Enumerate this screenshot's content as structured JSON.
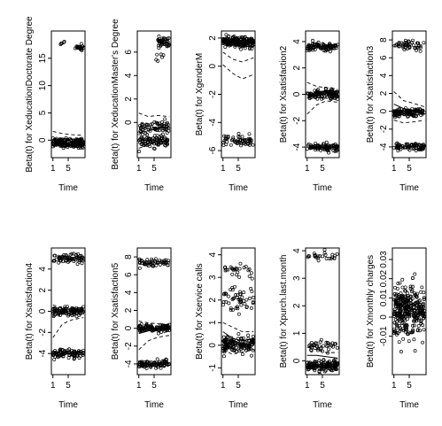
{
  "chart_data": [
    {
      "type": "scatter",
      "ylabel": "Beta(t) for XeducationDoctorate Degree",
      "xlabel": "Time",
      "xticks": [
        "1",
        "5"
      ],
      "xticks_at": [
        1,
        5
      ],
      "xlim": [
        0.6,
        9.4
      ],
      "ylim": [
        -3.2,
        20
      ],
      "yticks": [
        0,
        5,
        10,
        15
      ],
      "bands": [
        {
          "y": -0.5,
          "s": 0.8,
          "n": 170
        },
        {
          "y": 17,
          "s": 0.6,
          "n": 22,
          "x0": 6.8,
          "x1": 9
        },
        {
          "y": 18,
          "s": 0.6,
          "n": 5,
          "x0": 3,
          "x1": 4
        }
      ],
      "lines": [
        [
          0.2,
          0.2,
          0.2,
          0.2
        ],
        [
          -1.2,
          -0.8,
          -0.6,
          -0.5
        ],
        [
          1.6,
          1.2,
          1.0,
          0.9
        ]
      ]
    },
    {
      "type": "scatter",
      "ylabel": "Beta(t) for XeducationMaster's Degree",
      "xlabel": "Time",
      "xticks": [
        "1",
        "5"
      ],
      "xticks_at": [
        1,
        5
      ],
      "xlim": [
        0.6,
        9.4
      ],
      "ylim": [
        -3,
        7.8
      ],
      "yticks": [
        0,
        2,
        4,
        6
      ],
      "bands": [
        {
          "y": -1.6,
          "s": 0.5,
          "n": 90
        },
        {
          "y": -0.4,
          "s": 0.5,
          "n": 60
        },
        {
          "y": 6.8,
          "s": 0.5,
          "n": 40,
          "x0": 6,
          "x1": 9
        },
        {
          "y": 5.6,
          "s": 0.3,
          "n": 6,
          "x0": 5,
          "x1": 8
        }
      ],
      "lines": [
        [
          -0.9,
          -0.7,
          -0.5,
          -0.4
        ],
        [
          -2.2,
          -1.9,
          -1.7,
          -1.5
        ],
        [
          0.8,
          0.5,
          0.6,
          0.5
        ]
      ]
    },
    {
      "type": "scatter",
      "ylabel": "Beta(t) for XgenderM",
      "xlabel": "Time",
      "xticks": [
        "1",
        "5"
      ],
      "xticks_at": [
        1,
        5
      ],
      "xlim": [
        0.6,
        9.4
      ],
      "ylim": [
        -6.5,
        2.5
      ],
      "yticks": [
        -6,
        -4,
        -2,
        0,
        2
      ],
      "bands": [
        {
          "y": 1.7,
          "s": 0.35,
          "n": 200
        },
        {
          "y": -5.3,
          "s": 0.4,
          "n": 60
        }
      ],
      "lines": [
        [
          1.6,
          1.5,
          1.4,
          1.4
        ],
        [
          1.0,
          0.5,
          0.3,
          0.6
        ],
        [
          2.0,
          1.9,
          1.8,
          1.7
        ],
        [
          0.1,
          -0.5,
          -0.9,
          -0.6
        ]
      ]
    },
    {
      "type": "scatter",
      "ylabel": "Beta(t) for Xsatisfaction2",
      "xlabel": "Time",
      "xticks": [
        "1",
        "5"
      ],
      "xticks_at": [
        1,
        5
      ],
      "xlim": [
        0.6,
        9.4
      ],
      "ylim": [
        -4.8,
        4.8
      ],
      "yticks": [
        -4,
        -2,
        0,
        2,
        4
      ],
      "bands": [
        {
          "y": 3.6,
          "s": 0.3,
          "n": 90
        },
        {
          "y": 0,
          "s": 0.35,
          "n": 110
        },
        {
          "y": -4,
          "s": 0.3,
          "n": 90
        }
      ],
      "lines": [
        [
          -0.3,
          0.1,
          0.3,
          0.2
        ],
        [
          -1.5,
          -0.8,
          -0.5,
          -0.6
        ],
        [
          0.9,
          0.6,
          0.5,
          0.4
        ]
      ]
    },
    {
      "type": "scatter",
      "ylabel": "Beta(t) for Xsatisfaction3",
      "xlabel": "Time",
      "xticks": [
        "1",
        "5"
      ],
      "xticks_at": [
        1,
        5
      ],
      "xlim": [
        0.6,
        9.4
      ],
      "ylim": [
        -5.2,
        9
      ],
      "yticks": [
        -4,
        -2,
        0,
        2,
        4,
        6,
        8
      ],
      "bands": [
        {
          "y": 7.4,
          "s": 0.5,
          "n": 45
        },
        {
          "y": -0.2,
          "s": 0.5,
          "n": 110
        },
        {
          "y": -4,
          "s": 0.4,
          "n": 80
        }
      ],
      "lines": [
        [
          0.8,
          0.3,
          0,
          -0.3
        ],
        [
          -1,
          -1.3,
          -1.2,
          -1
        ],
        [
          2.2,
          1.2,
          0.9,
          0.5
        ]
      ]
    },
    {
      "type": "scatter",
      "ylabel": "Beta(t) for Xsatisfaction4",
      "xlabel": "Time",
      "xticks": [
        "1",
        "5"
      ],
      "xticks_at": [
        1,
        5
      ],
      "xlim": [
        0.6,
        9.4
      ],
      "ylim": [
        -6,
        6
      ],
      "yticks": [
        -4,
        -2,
        0,
        2,
        4
      ],
      "bands": [
        {
          "y": 5,
          "s": 0.4,
          "n": 70
        },
        {
          "y": 0,
          "s": 0.4,
          "n": 110
        },
        {
          "y": -4,
          "s": 0.4,
          "n": 90
        }
      ],
      "lines": [
        [
          -0.5,
          -0.1,
          0,
          0
        ],
        [
          -2.5,
          -1.2,
          -0.8,
          -0.6
        ],
        [
          0.6,
          0.3,
          0.4,
          0.3
        ]
      ]
    },
    {
      "type": "scatter",
      "ylabel": "Beta(t) for Xsatisfaction5",
      "xlabel": "Time",
      "xticks": [
        "1",
        "5"
      ],
      "xticks_at": [
        1,
        5
      ],
      "xlim": [
        0.6,
        9.4
      ],
      "ylim": [
        -5.2,
        9
      ],
      "yticks": [
        -4,
        -2,
        0,
        2,
        4,
        6,
        8
      ],
      "bands": [
        {
          "y": 7.4,
          "s": 0.4,
          "n": 55
        },
        {
          "y": 0,
          "s": 0.4,
          "n": 110
        },
        {
          "y": -4,
          "s": 0.4,
          "n": 90
        }
      ],
      "lines": [
        [
          -0.6,
          -0.3,
          -0.1,
          0
        ],
        [
          -2.4,
          -1.4,
          -1,
          -0.8
        ],
        [
          0.8,
          0.6,
          0.5,
          0.4
        ]
      ]
    },
    {
      "type": "scatter",
      "ylabel": "Beta(t) for Xservice calls",
      "xlabel": "Time",
      "xticks": [
        "1",
        "5"
      ],
      "xticks_at": [
        1,
        5
      ],
      "xlim": [
        0.6,
        9.4
      ],
      "ylim": [
        -1.3,
        4.3
      ],
      "yticks": [
        -1,
        0,
        1,
        2,
        3,
        4
      ],
      "bands": [
        {
          "y": 0,
          "s": 0.4,
          "n": 140
        },
        {
          "y": 2,
          "s": 0.6,
          "n": 50
        },
        {
          "y": 3.3,
          "s": 0.4,
          "n": 25
        }
      ],
      "lines": [
        [
          0.6,
          0.3,
          0.2,
          0.3
        ],
        [
          -0.2,
          -0.4,
          -0.3,
          -0.2
        ],
        [
          1.0,
          0.8,
          0.6,
          0.6
        ]
      ]
    },
    {
      "type": "scatter",
      "ylabel": "Beta(t) for Xpurch.last.month",
      "xlabel": "Time",
      "xticks": [
        "1",
        "5"
      ],
      "xticks_at": [
        1,
        5
      ],
      "xlim": [
        0.6,
        9.4
      ],
      "ylim": [
        -0.5,
        4.1
      ],
      "yticks": [
        0,
        1,
        2,
        3,
        4
      ],
      "bands": [
        {
          "y": -0.2,
          "s": 0.2,
          "n": 140
        },
        {
          "y": 0.5,
          "s": 0.2,
          "n": 40
        },
        {
          "y": 3.8,
          "s": 0.15,
          "n": 25
        }
      ],
      "lines": [
        [
          0.2,
          0.2,
          0.15,
          0.1
        ],
        [
          0,
          -0.2,
          -0.2,
          -0.2
        ],
        [
          0.5,
          0.4,
          0.3,
          0.3
        ]
      ]
    },
    {
      "type": "scatter",
      "ylabel": "Beta(t) for Xmonthly charges",
      "xlabel": "Time",
      "xticks": [
        "1",
        "5"
      ],
      "xticks_at": [
        1,
        5
      ],
      "xlim": [
        0.6,
        9.4
      ],
      "ylim": [
        -0.03,
        0.036
      ],
      "yticks": [
        -0.01,
        0,
        0.01,
        0.02,
        0.03
      ],
      "bands": [
        {
          "y": 0.004,
          "s": 0.013,
          "n": 330
        }
      ],
      "lines": [
        [
          0.007,
          0.005,
          0.004,
          0.004
        ],
        [
          0.003,
          0.001,
          0.002,
          0.002
        ],
        [
          0.011,
          0.009,
          0.007,
          0.007
        ]
      ]
    }
  ]
}
